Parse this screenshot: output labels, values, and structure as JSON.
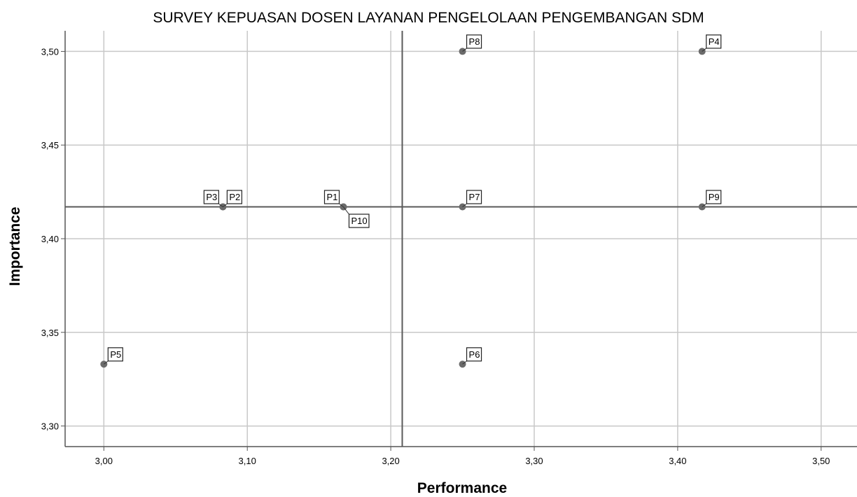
{
  "chart_data": {
    "type": "scatter",
    "title": "SURVEY KEPUASAN DOSEN LAYANAN PENGELOLAAN PENGEMBANGAN SDM",
    "xlabel": "Performance",
    "ylabel": "Importance",
    "xlim": [
      2.973,
      3.525
    ],
    "ylim": [
      3.289,
      3.511
    ],
    "x_ticks": [
      3.0,
      3.1,
      3.2,
      3.3,
      3.4,
      3.5
    ],
    "x_tick_labels": [
      "3,00",
      "3,10",
      "3,20",
      "3,30",
      "3,40",
      "3,50"
    ],
    "y_ticks": [
      3.3,
      3.35,
      3.4,
      3.45,
      3.5
    ],
    "y_tick_labels": [
      "3,30",
      "3,35",
      "3,40",
      "3,45",
      "3,50"
    ],
    "grid": true,
    "reference_lines": {
      "x": 3.208,
      "y": 3.417
    },
    "points": [
      {
        "label": "P1",
        "x": 3.167,
        "y": 3.417,
        "label_pos": "upper-left"
      },
      {
        "label": "P2",
        "x": 3.083,
        "y": 3.417,
        "label_pos": "upper-right"
      },
      {
        "label": "P3",
        "x": 3.083,
        "y": 3.417,
        "label_pos": "upper-left"
      },
      {
        "label": "P4",
        "x": 3.417,
        "y": 3.5,
        "label_pos": "upper-right"
      },
      {
        "label": "P5",
        "x": 3.0,
        "y": 3.333,
        "label_pos": "upper-right"
      },
      {
        "label": "P6",
        "x": 3.25,
        "y": 3.333,
        "label_pos": "upper-right"
      },
      {
        "label": "P7",
        "x": 3.25,
        "y": 3.417,
        "label_pos": "upper-right"
      },
      {
        "label": "P8",
        "x": 3.25,
        "y": 3.5,
        "label_pos": "upper-right"
      },
      {
        "label": "P9",
        "x": 3.417,
        "y": 3.417,
        "label_pos": "upper-right"
      },
      {
        "label": "P10",
        "x": 3.167,
        "y": 3.417,
        "label_pos": "lower-right"
      }
    ],
    "colors": {
      "point": "#6b6b6b",
      "grid": "#c8c8c8",
      "axis": "#555555",
      "reference": "#5a5a5a"
    }
  }
}
